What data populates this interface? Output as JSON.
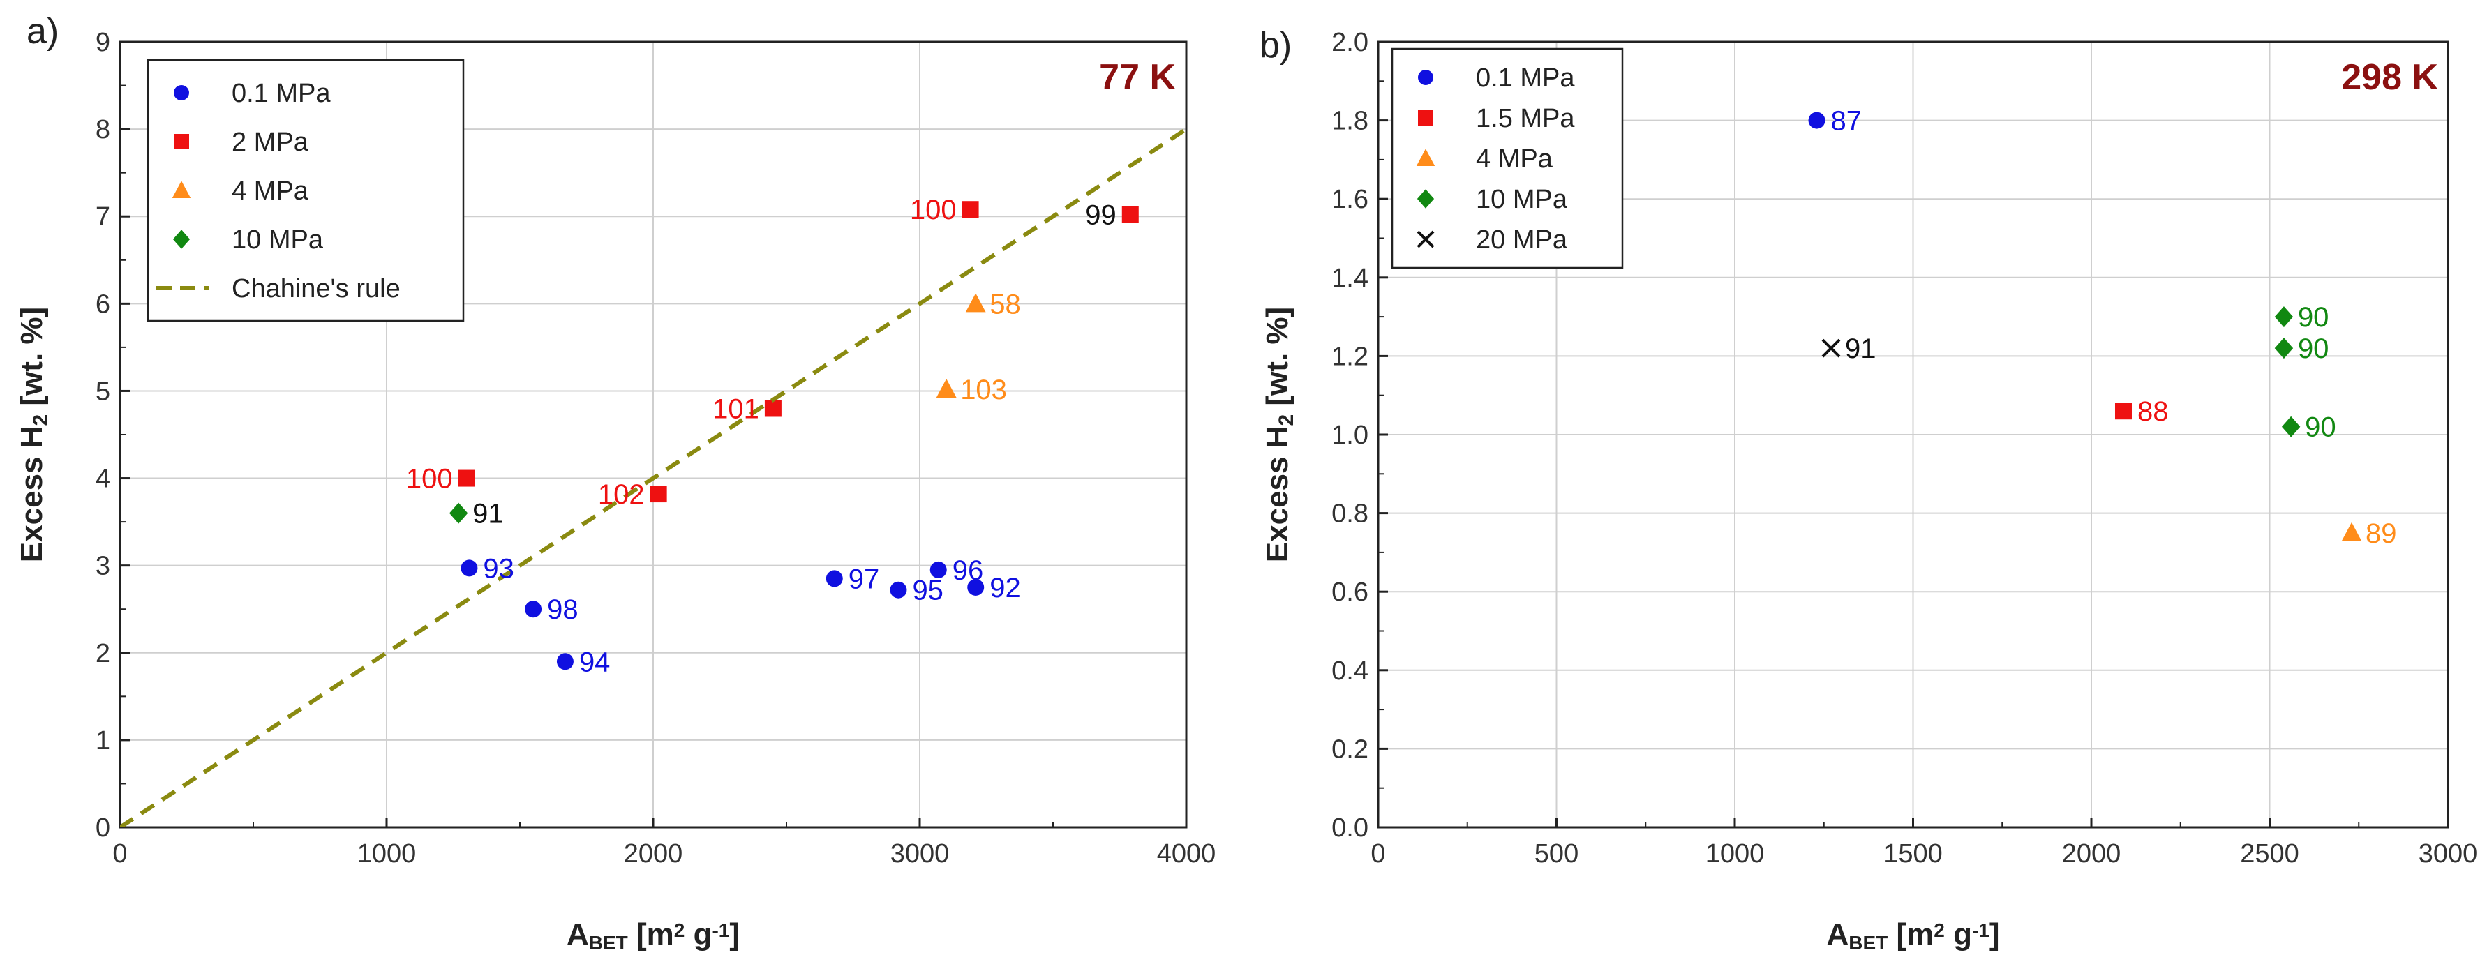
{
  "chart_data": [
    {
      "panel": "a)",
      "type": "scatter",
      "annotation": "77 K",
      "xlabel": {
        "main": "A",
        "sub": "BET",
        "unit": " [m",
        "sup": "2",
        "unit2": " g",
        "sup2": "-1",
        "end": "]"
      },
      "ylabel": {
        "main": "Excess H",
        "sub": "2",
        "rest": " [wt. %]"
      },
      "xlim": [
        0,
        4000
      ],
      "ylim": [
        0,
        9
      ],
      "xticks": [
        0,
        1000,
        2000,
        3000,
        4000
      ],
      "yticks": [
        0,
        1,
        2,
        3,
        4,
        5,
        6,
        7,
        8,
        9
      ],
      "grid": true,
      "legend_position": "top-left",
      "series": [
        {
          "name": "0.1 MPa",
          "marker": "circle",
          "color": "#1010e0",
          "points": [
            {
              "x": 1310,
              "y": 2.97,
              "label": "93",
              "label_side": "right"
            },
            {
              "x": 1550,
              "y": 2.5,
              "label": "98",
              "label_side": "right"
            },
            {
              "x": 1670,
              "y": 1.9,
              "label": "94",
              "label_side": "right"
            },
            {
              "x": 2680,
              "y": 2.85,
              "label": "97",
              "label_side": "right"
            },
            {
              "x": 2920,
              "y": 2.72,
              "label": "95",
              "label_side": "right"
            },
            {
              "x": 3070,
              "y": 2.95,
              "label": "96",
              "label_side": "right"
            },
            {
              "x": 3210,
              "y": 2.75,
              "label": "92",
              "label_side": "right"
            }
          ]
        },
        {
          "name": "2 MPa",
          "marker": "square",
          "color": "#ee1111",
          "points": [
            {
              "x": 1300,
              "y": 4.0,
              "label": "100",
              "label_side": "left"
            },
            {
              "x": 2020,
              "y": 3.82,
              "label": "102",
              "label_side": "left"
            },
            {
              "x": 2450,
              "y": 4.8,
              "label": "101",
              "label_side": "left"
            },
            {
              "x": 3190,
              "y": 7.08,
              "label": "100",
              "label_side": "left"
            },
            {
              "x": 3790,
              "y": 7.02,
              "label": "99",
              "label_side": "left",
              "label_color": "#111111"
            }
          ]
        },
        {
          "name": "4 MPa",
          "marker": "triangle",
          "color": "#ff8c1a",
          "points": [
            {
              "x": 3210,
              "y": 6.0,
              "label": "58",
              "label_side": "right"
            },
            {
              "x": 3100,
              "y": 5.02,
              "label": "103",
              "label_side": "right"
            }
          ]
        },
        {
          "name": "10 MPa",
          "marker": "diamond",
          "color": "#118811",
          "points": [
            {
              "x": 1270,
              "y": 3.6,
              "label": "91",
              "label_side": "right",
              "label_color": "#111111"
            }
          ]
        },
        {
          "name": "Chahine's rule",
          "marker": "dashed-line",
          "color": "#8a8a10",
          "points": [
            {
              "x": 0,
              "y": 0
            },
            {
              "x": 4000,
              "y": 8
            }
          ]
        }
      ]
    },
    {
      "panel": "b)",
      "type": "scatter",
      "annotation": "298 K",
      "xlabel": {
        "main": "A",
        "sub": "BET",
        "unit": " [m",
        "sup": "2",
        "unit2": " g",
        "sup2": "-1",
        "end": "]"
      },
      "ylabel": {
        "main": "Excess H",
        "sub": "2",
        "rest": " [wt. %]"
      },
      "xlim": [
        0,
        3000
      ],
      "ylim": [
        0,
        2.0
      ],
      "xticks": [
        0,
        500,
        1000,
        1500,
        2000,
        2500,
        3000
      ],
      "yticks": [
        0.0,
        0.2,
        0.4,
        0.6,
        0.8,
        1.0,
        1.2,
        1.4,
        1.6,
        1.8,
        2.0
      ],
      "grid": true,
      "legend_position": "top-left",
      "series": [
        {
          "name": "0.1 MPa",
          "marker": "circle",
          "color": "#1010e0",
          "points": [
            {
              "x": 1230,
              "y": 1.8,
              "label": "87",
              "label_side": "right"
            }
          ]
        },
        {
          "name": "1.5 MPa",
          "marker": "square",
          "color": "#ee1111",
          "points": [
            {
              "x": 2090,
              "y": 1.06,
              "label": "88",
              "label_side": "right"
            }
          ]
        },
        {
          "name": "4 MPa",
          "marker": "triangle",
          "color": "#ff8c1a",
          "points": [
            {
              "x": 2730,
              "y": 0.75,
              "label": "89",
              "label_side": "right"
            }
          ]
        },
        {
          "name": "10 MPa",
          "marker": "diamond",
          "color": "#118811",
          "points": [
            {
              "x": 2540,
              "y": 1.3,
              "label": "90",
              "label_side": "right"
            },
            {
              "x": 2540,
              "y": 1.22,
              "label": "90",
              "label_side": "right"
            },
            {
              "x": 2560,
              "y": 1.02,
              "label": "90",
              "label_side": "right"
            }
          ]
        },
        {
          "name": "20 MPa",
          "marker": "cross",
          "color": "#111111",
          "points": [
            {
              "x": 1270,
              "y": 1.22,
              "label": "91",
              "label_side": "right"
            }
          ]
        }
      ]
    }
  ]
}
